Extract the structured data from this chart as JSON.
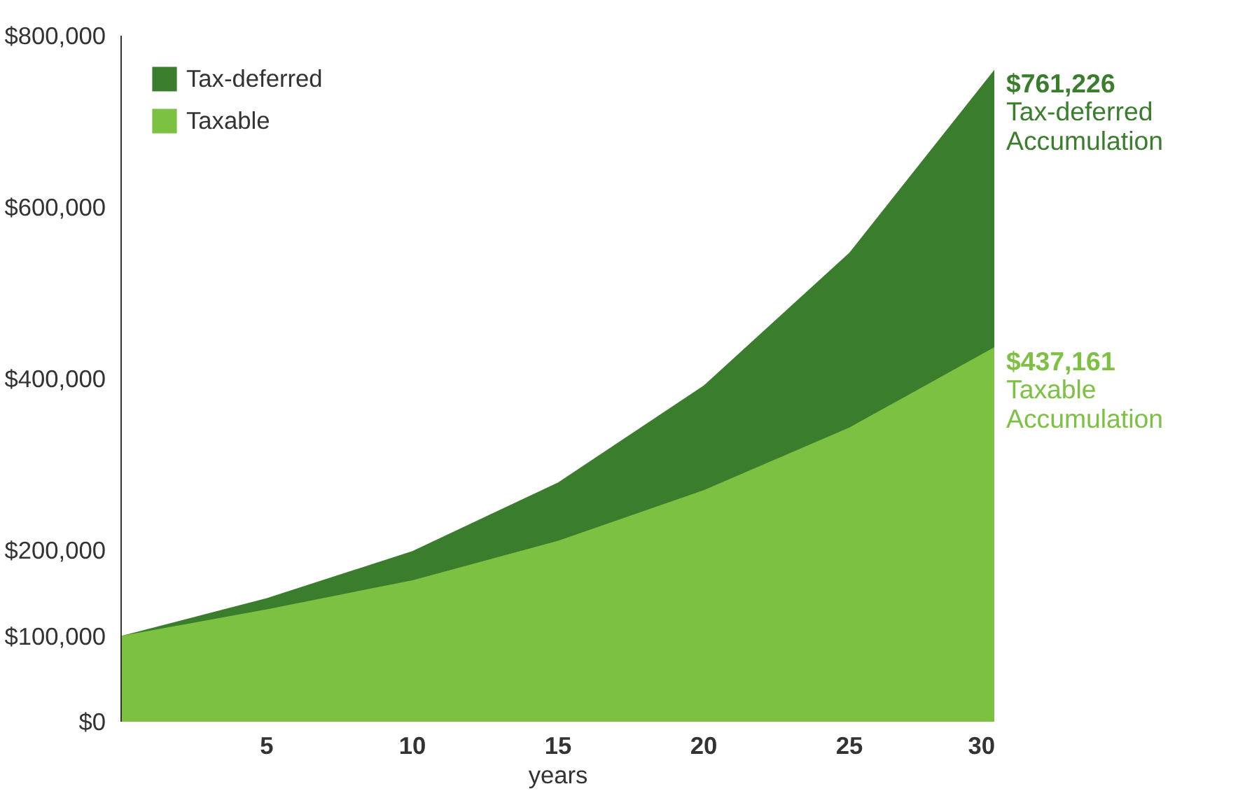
{
  "chart_data": {
    "type": "area",
    "xlabel": "years",
    "x": [
      0,
      5,
      10,
      15,
      20,
      25,
      30
    ],
    "series": [
      {
        "name": "Tax-deferred",
        "color": "#3a7d2c",
        "values": [
          100000,
          144000,
          199000,
          279000,
          392000,
          547000,
          761226
        ]
      },
      {
        "name": "Taxable",
        "color": "#7dc142",
        "values": [
          100000,
          131000,
          165000,
          211000,
          270000,
          343000,
          437161
        ]
      }
    ],
    "xlim": [
      0,
      30
    ],
    "xticks": [
      5,
      10,
      15,
      20,
      25,
      30
    ],
    "ylim": [
      0,
      800000
    ],
    "yticks": [
      {
        "value": 0,
        "label": "$0"
      },
      {
        "value": 100000,
        "label": "$100,000"
      },
      {
        "value": 200000,
        "label": "$200,000"
      },
      {
        "value": 400000,
        "label": "$400,000"
      },
      {
        "value": 600000,
        "label": "$600,000"
      },
      {
        "value": 800000,
        "label": "$800,000"
      }
    ],
    "annotations": [
      "$761,226",
      "Tax-deferred\nAccumulation",
      "$437,161",
      "Taxable\nAccumulation"
    ],
    "legend": "top left",
    "grid": false
  }
}
